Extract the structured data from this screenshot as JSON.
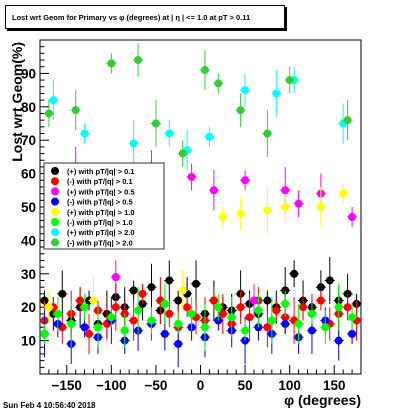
{
  "title": "Lost wrt Geom for Primary vs φ (degrees) at | η | <= 1.0 at pT > 0.11",
  "datestamp": "Sun Feb  4 10:56:40 2018",
  "chart_data": {
    "type": "scatter",
    "xlabel": "φ (degrees)",
    "ylabel": "Lost wrt Geom(%)",
    "xlim": [
      -180,
      180
    ],
    "ylim": [
      0,
      100
    ],
    "xticks": [
      -150,
      -100,
      -50,
      0,
      50,
      100,
      150
    ],
    "yticks": [
      10,
      20,
      30,
      40,
      50,
      60,
      70,
      80,
      90
    ],
    "legend_position": "left-middle",
    "grid": false,
    "series": [
      {
        "name": "(+) with pT/|q| > 0.1",
        "color": "#000000",
        "marker": "circle",
        "x": [
          -175,
          -165,
          -155,
          -145,
          -135,
          -125,
          -115,
          -105,
          -95,
          -85,
          -75,
          -65,
          -55,
          -45,
          -35,
          -25,
          -15,
          -5,
          5,
          15,
          25,
          35,
          45,
          55,
          65,
          75,
          85,
          95,
          105,
          115,
          125,
          135,
          145,
          155,
          165,
          175
        ],
        "y": [
          22,
          18,
          24,
          16,
          20,
          22,
          15,
          18,
          23,
          20,
          25,
          21,
          26,
          19,
          28,
          22,
          24,
          27,
          18,
          22,
          20,
          19,
          24,
          21,
          18,
          22,
          20,
          25,
          30,
          22,
          20,
          26,
          28,
          22,
          24,
          21
        ]
      },
      {
        "name": "(-) with pT/|q| > 0.1",
        "color": "#ff0000",
        "marker": "circle",
        "x": [
          -175,
          -165,
          -155,
          -145,
          -135,
          -125,
          -115,
          -105,
          -95,
          -85,
          -75,
          -65,
          -55,
          -45,
          -35,
          -25,
          -15,
          -5,
          5,
          15,
          25,
          35,
          45,
          55,
          65,
          75,
          85,
          95,
          105,
          115,
          125,
          135,
          145,
          155,
          165,
          175
        ],
        "y": [
          16,
          20,
          14,
          18,
          22,
          12,
          19,
          15,
          20,
          18,
          16,
          24,
          15,
          22,
          18,
          14,
          20,
          17,
          16,
          22,
          18,
          15,
          20,
          17,
          22,
          14,
          19,
          17,
          16,
          20,
          18,
          22,
          15,
          18,
          20,
          16
        ]
      },
      {
        "name": "(+) with pT/|q| > 0.5",
        "color": "#ff00ff",
        "marker": "circle",
        "x": [
          -165,
          -140,
          -110,
          -95,
          -55,
          -10,
          15,
          50,
          60,
          95,
          110,
          135,
          170
        ],
        "y": [
          55,
          62,
          59,
          29,
          60,
          59,
          55,
          58,
          22,
          55,
          51,
          54,
          47
        ]
      },
      {
        "name": "(-) with pT/|q| > 0.5",
        "color": "#0000ff",
        "marker": "circle",
        "x": [
          -175,
          -160,
          -145,
          -130,
          -115,
          -100,
          -85,
          -70,
          -55,
          -40,
          -25,
          -10,
          5,
          20,
          35,
          50,
          65,
          80,
          95,
          110,
          125,
          140,
          155,
          170
        ],
        "y": [
          12,
          15,
          9,
          14,
          11,
          16,
          10,
          13,
          15,
          12,
          9,
          14,
          11,
          16,
          13,
          10,
          14,
          12,
          15,
          11,
          13,
          16,
          10,
          12
        ]
      },
      {
        "name": "(+) with pT/|q| > 1.0",
        "color": "#ffff00",
        "marker": "circle",
        "x": [
          -170,
          -120,
          -60,
          -20,
          25,
          45,
          75,
          95,
          135,
          160
        ],
        "y": [
          20,
          22,
          45,
          25,
          47,
          48,
          49,
          50,
          50,
          54
        ]
      },
      {
        "name": "(-) with pT/|q| > 1.0",
        "color": "#00ff00",
        "marker": "circle",
        "x": [
          -175,
          -160,
          -145,
          -130,
          -115,
          -100,
          -85,
          -70,
          -55,
          -40,
          -25,
          -10,
          5,
          20,
          35,
          50,
          65,
          80,
          95,
          110,
          125,
          140,
          155,
          170
        ],
        "y": [
          12,
          18,
          15,
          20,
          14,
          17,
          13,
          19,
          16,
          21,
          15,
          18,
          14,
          20,
          17,
          13,
          19,
          16,
          21,
          15,
          18,
          14,
          20,
          17
        ]
      },
      {
        "name": "(+) with pT/|q| > 2.0",
        "color": "#00ffff",
        "marker": "circle",
        "x": [
          -165,
          -130,
          -105,
          -75,
          -35,
          -15,
          10,
          50,
          85,
          105,
          160
        ],
        "y": [
          82,
          72,
          50,
          69,
          72,
          67,
          71,
          85,
          84,
          88,
          75
        ]
      },
      {
        "name": "(-) with pT/|q| > 2.0",
        "color": "#33cc33",
        "marker": "circle",
        "x": [
          -170,
          -140,
          -100,
          -70,
          -50,
          -20,
          5,
          20,
          45,
          75,
          100,
          165
        ],
        "y": [
          78,
          79,
          93,
          94,
          75,
          66,
          91,
          87,
          79,
          72,
          88,
          76
        ]
      }
    ]
  }
}
